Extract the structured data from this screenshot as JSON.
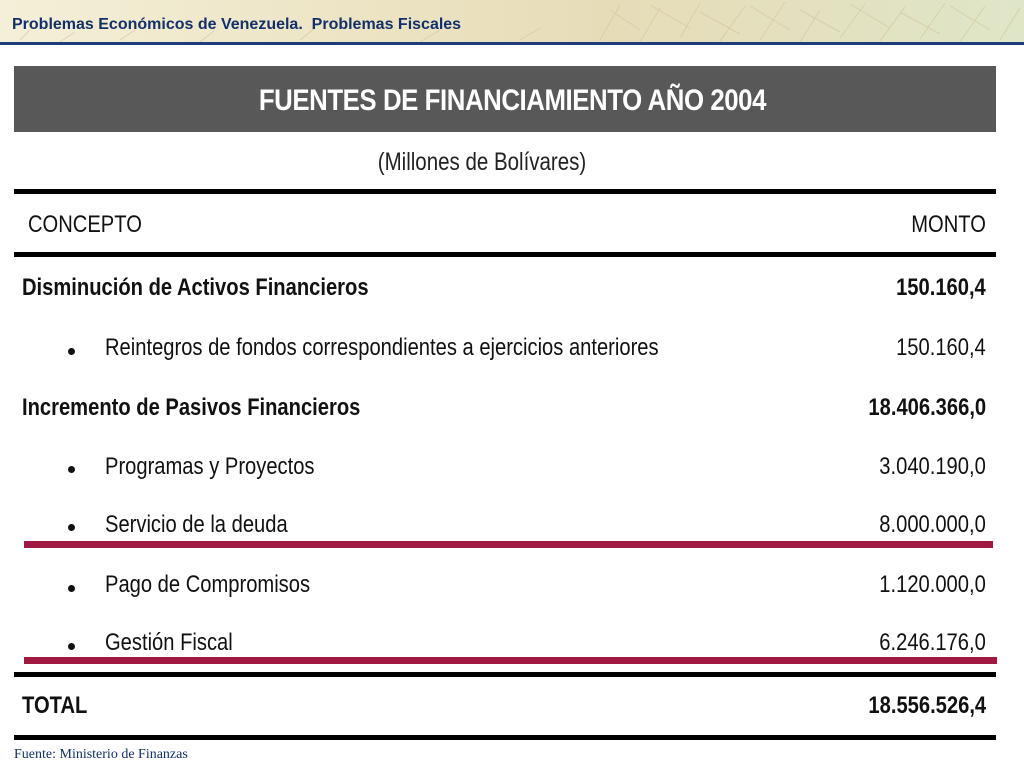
{
  "header": {
    "title": "Problemas Económicos de Venezuela.  Problemas Fiscales"
  },
  "table": {
    "title": "FUENTES DE FINANCIAMIENTO AÑO 2004",
    "subtitle": "(Millones de Bolívares)",
    "columns": {
      "concept": "CONCEPTO",
      "amount": "MONTO"
    },
    "rows": [
      {
        "label": "Disminución de Activos Financieros",
        "value": "150.160,4",
        "bold": true
      },
      {
        "label": "Reintegros de fondos correspondientes a ejercicios anteriores",
        "value": "150.160,4",
        "bullet": true
      },
      {
        "label": "Incremento de Pasivos Financieros",
        "value": "18.406.366,0",
        "bold": true
      },
      {
        "label": "Programas y Proyectos",
        "value": "3.040.190,0",
        "bullet": true
      },
      {
        "label": "Servicio de la deuda",
        "value": "8.000.000,0",
        "bullet": true
      },
      {
        "label": "Pago de Compromisos",
        "value": "1.120.000,0",
        "bullet": true
      },
      {
        "label": "Gestión Fiscal",
        "value": "6.246.176,0",
        "bullet": true
      }
    ],
    "total": {
      "label": "TOTAL",
      "value": "18.556.526,4"
    }
  },
  "footer": {
    "source": "Fuente: Ministerio de Finanzas"
  },
  "colors": {
    "header_text": "#13306b",
    "banner": "#585858",
    "highlight_line": "#a11942"
  }
}
